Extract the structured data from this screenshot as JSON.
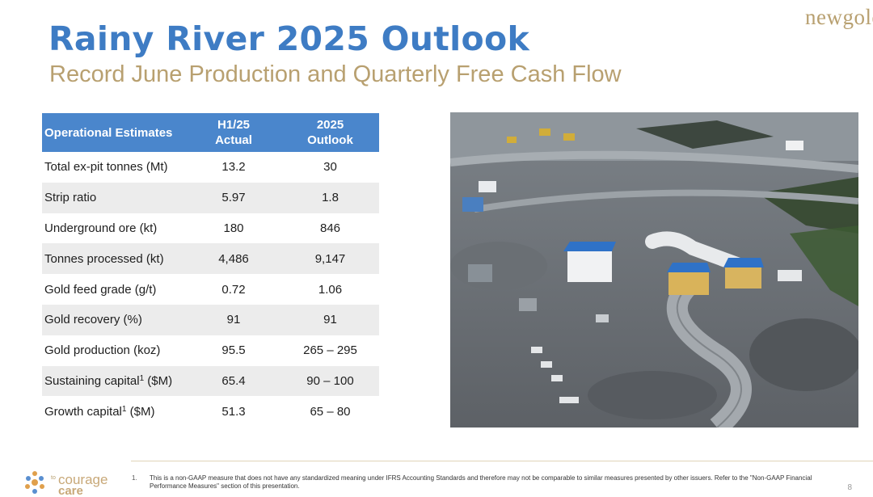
{
  "header": {
    "title": "Rainy River 2025 Outlook",
    "subtitle": "Record June Production and Quarterly Free Cash Flow",
    "logo_text": "newgold"
  },
  "table": {
    "headers": [
      {
        "line1": "Operational Estimates",
        "line2": ""
      },
      {
        "line1": "H1/25",
        "line2": "Actual"
      },
      {
        "line1": "2025",
        "line2": "Outlook"
      }
    ],
    "rows": [
      {
        "label": "Total ex-pit tonnes (Mt)",
        "sup": "",
        "unit": "",
        "h1": "13.2",
        "outlook": "30"
      },
      {
        "label": "Strip ratio",
        "sup": "",
        "unit": "",
        "h1": "5.97",
        "outlook": "1.8"
      },
      {
        "label": "Underground ore (kt)",
        "sup": "",
        "unit": "",
        "h1": "180",
        "outlook": "846"
      },
      {
        "label": "Tonnes processed (kt)",
        "sup": "",
        "unit": "",
        "h1": "4,486",
        "outlook": "9,147"
      },
      {
        "label": "Gold feed grade (g/t)",
        "sup": "",
        "unit": "",
        "h1": "0.72",
        "outlook": "1.06"
      },
      {
        "label": "Gold recovery (%)",
        "sup": "",
        "unit": "",
        "h1": "91",
        "outlook": "91"
      },
      {
        "label": "Gold production (koz)",
        "sup": "",
        "unit": "",
        "h1": "95.5",
        "outlook": "265 – 295"
      },
      {
        "label": "Sustaining capital",
        "sup": "1",
        "unit": " ($M)",
        "h1": "65.4",
        "outlook": "90 – 100"
      },
      {
        "label": "Growth capital",
        "sup": "1",
        "unit": " ($M)",
        "h1": "51.3",
        "outlook": "65 – 80"
      }
    ]
  },
  "footer": {
    "logo_small": "to",
    "logo_line1": "courage",
    "logo_line2": "care",
    "footnote_number": "1.",
    "footnote_text": "This is a non-GAAP measure that does not have any standardized meaning under IFRS Accounting Standards and therefore may not be comparable to similar measures presented by other issuers.  Refer to the \"Non-GAAP Financial Performance Measures\" section of this presentation.",
    "page_number": "8"
  },
  "colors": {
    "title_blue": "#3e7cc4",
    "gold": "#b8a070",
    "header_blue": "#4a86cc",
    "row_shade": "#ececec"
  }
}
